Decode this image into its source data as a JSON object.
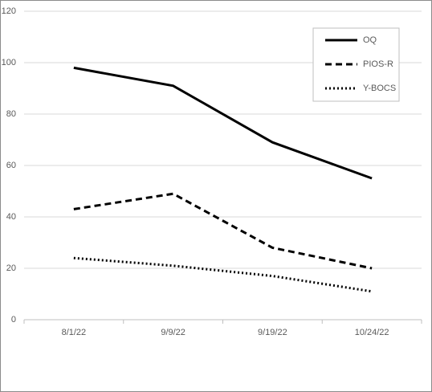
{
  "chart_data": {
    "type": "line",
    "categories": [
      "8/1/22",
      "9/9/22",
      "9/19/22",
      "10/24/22"
    ],
    "series": [
      {
        "name": "OQ",
        "color": "#000000",
        "dash": "solid",
        "values": [
          98,
          91,
          69,
          55
        ]
      },
      {
        "name": "PIOS-R",
        "color": "#000000",
        "dash": "dashed",
        "values": [
          43,
          49,
          28,
          20
        ]
      },
      {
        "name": "Y-BOCS",
        "color": "#000000",
        "dash": "dotted",
        "values": [
          24,
          21,
          17,
          11
        ]
      }
    ],
    "ylim": [
      0,
      120
    ],
    "yticks": [
      0,
      20,
      40,
      60,
      80,
      100,
      120
    ],
    "grid": true,
    "legend": "top-right"
  }
}
